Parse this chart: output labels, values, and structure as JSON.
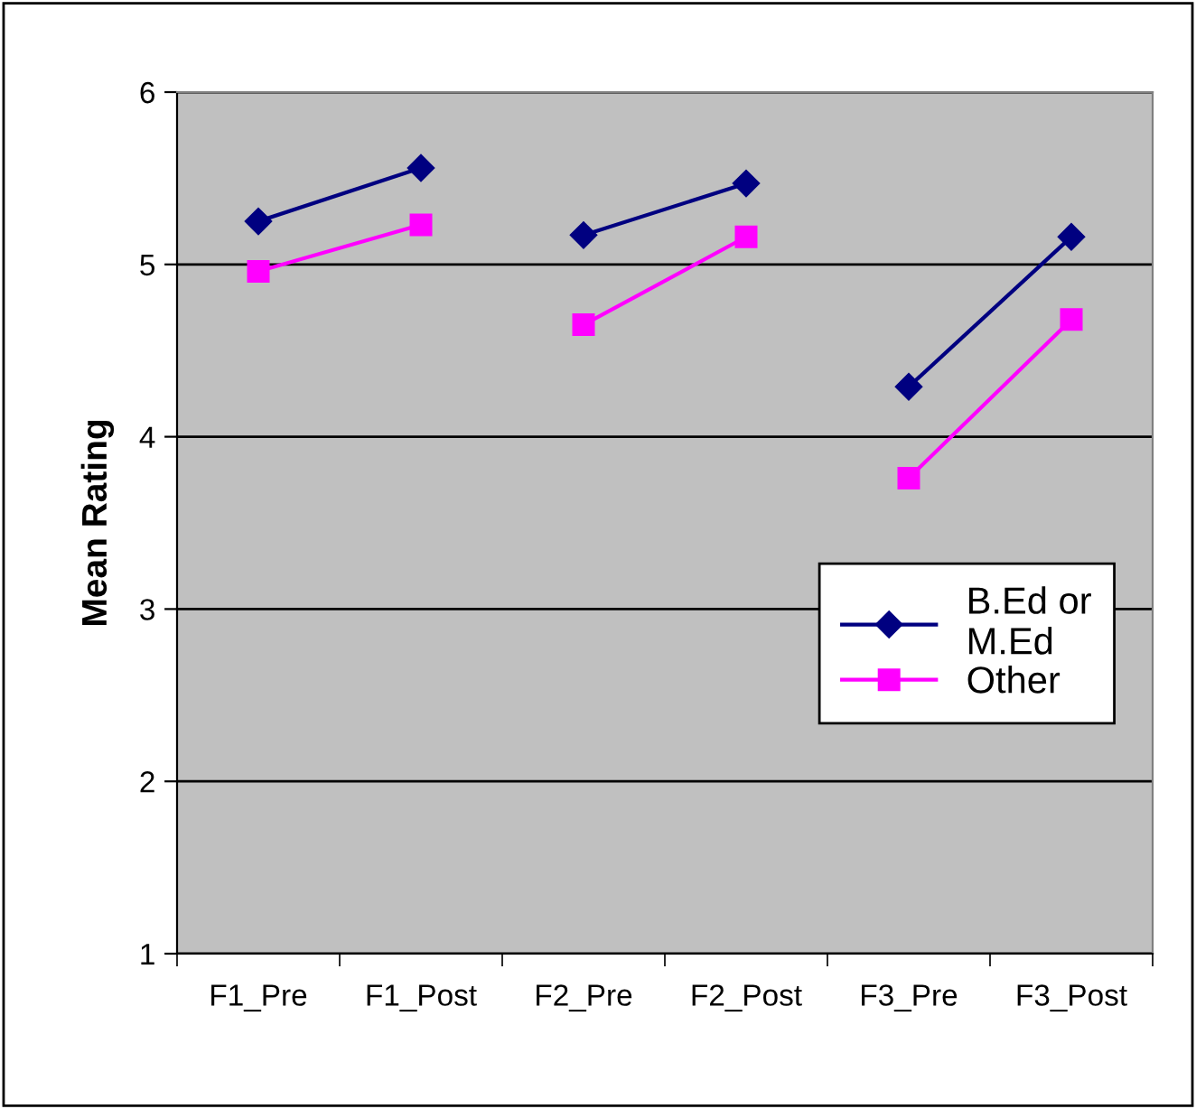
{
  "chart_data": {
    "type": "line",
    "ylabel": "Mean Rating",
    "categories": [
      "F1_Pre",
      "F1_Post",
      "F2_Pre",
      "F2_Post",
      "F3_Pre",
      "F3_Post"
    ],
    "series": [
      {
        "name": "B.Ed or\nM.Ed",
        "color": "#000080",
        "marker": "diamond",
        "values": [
          5.25,
          5.56,
          null,
          null,
          null,
          null
        ]
      },
      {
        "color": "#000080",
        "marker": "diamond",
        "values": [
          null,
          null,
          5.17,
          5.47,
          null,
          null
        ]
      },
      {
        "color": "#000080",
        "marker": "diamond",
        "values": [
          null,
          null,
          null,
          null,
          4.29,
          5.16
        ]
      },
      {
        "name": "Other",
        "color": "#ff00ff",
        "marker": "square",
        "values": [
          4.96,
          5.23,
          null,
          null,
          null,
          null
        ]
      },
      {
        "color": "#ff00ff",
        "marker": "square",
        "values": [
          null,
          null,
          4.65,
          5.16,
          null,
          null
        ]
      },
      {
        "color": "#ff00ff",
        "marker": "square",
        "values": [
          null,
          null,
          null,
          null,
          3.76,
          4.68
        ]
      }
    ],
    "ylim": [
      1,
      6
    ],
    "yticks": [
      1,
      2,
      3,
      4,
      5,
      6
    ],
    "grid": "y",
    "legend": "right",
    "line_style": "solid"
  }
}
